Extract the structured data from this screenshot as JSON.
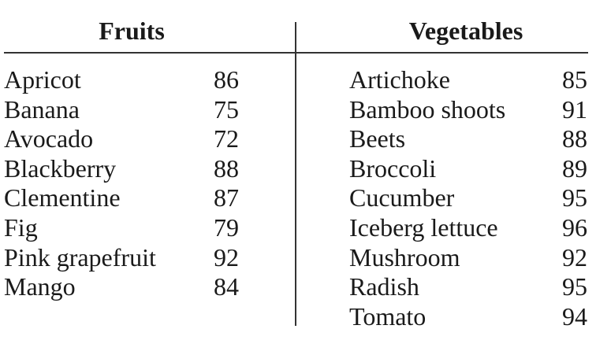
{
  "page": {
    "background": "#ffffff",
    "text_color": "#1a1a1a",
    "rule_color": "#333333"
  },
  "fruits": {
    "header": "Fruits",
    "rows": [
      {
        "name": "Apricot",
        "value": "86"
      },
      {
        "name": "Banana",
        "value": "75"
      },
      {
        "name": "Avocado",
        "value": "72"
      },
      {
        "name": "Blackberry",
        "value": "88"
      },
      {
        "name": "Clementine",
        "value": "87"
      },
      {
        "name": "Fig",
        "value": "79"
      },
      {
        "name": "Pink grapefruit",
        "value": "92"
      },
      {
        "name": "Mango",
        "value": "84"
      }
    ]
  },
  "vegetables": {
    "header": "Vegetables",
    "rows": [
      {
        "name": "Artichoke",
        "value": "85"
      },
      {
        "name": "Bamboo shoots",
        "value": "91"
      },
      {
        "name": "Beets",
        "value": "88"
      },
      {
        "name": "Broccoli",
        "value": "89"
      },
      {
        "name": "Cucumber",
        "value": "95"
      },
      {
        "name": "Iceberg lettuce",
        "value": "96"
      },
      {
        "name": "Mushroom",
        "value": "92"
      },
      {
        "name": "Radish",
        "value": "95"
      },
      {
        "name": "Tomato",
        "value": "94"
      }
    ]
  }
}
